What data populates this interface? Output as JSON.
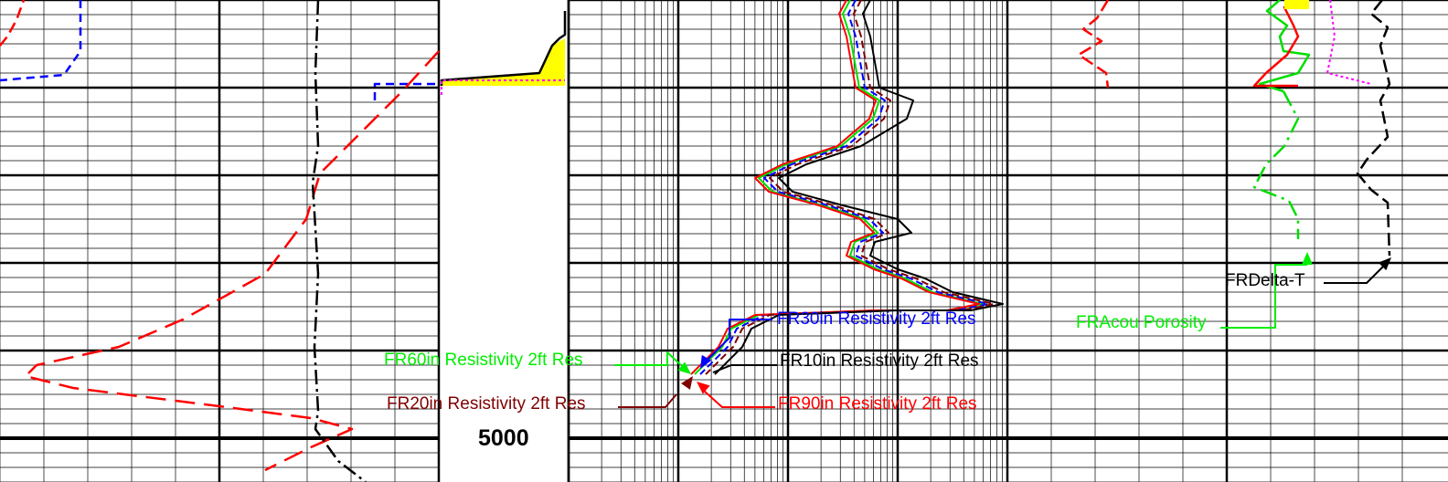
{
  "chart_data": {
    "type": "line",
    "title": "",
    "depth_label": "5000",
    "tracks": [
      {
        "name": "track-1",
        "scale": "linear"
      },
      {
        "name": "depth-track"
      },
      {
        "name": "track-2",
        "scale": "log"
      },
      {
        "name": "track-3",
        "scale": "linear"
      }
    ],
    "labels": [
      {
        "text": "FR30in Resistivity 2ft Res",
        "color": "#0000ff"
      },
      {
        "text": "FR10in Resistivity 2ft Res",
        "color": "#000000"
      },
      {
        "text": "FR60in Resistivity 2ft Res",
        "color": "#00ee00"
      },
      {
        "text": "FR20in Resistivity 2ft Res",
        "color": "#800000"
      },
      {
        "text": "FR90in Resistivity 2ft Res",
        "color": "#ff0000"
      },
      {
        "text": "FRAcou Porosity",
        "color": "#00ee00"
      },
      {
        "text": "FRDelta-T",
        "color": "#000000"
      }
    ],
    "colors": {
      "fill": "#ffff00",
      "grid": "#000000"
    }
  }
}
